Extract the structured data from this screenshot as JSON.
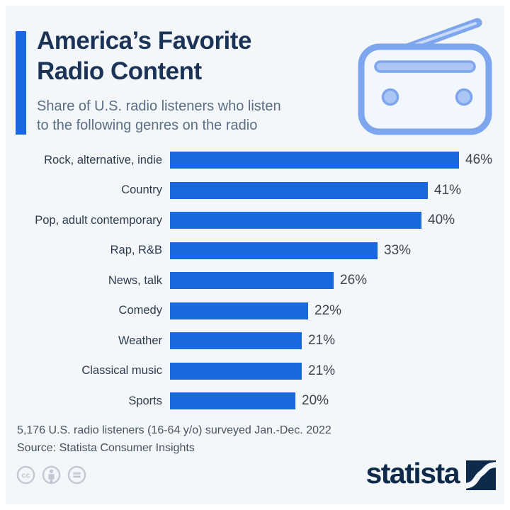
{
  "header": {
    "title_lines": [
      "America’s Favorite",
      "Radio Content"
    ],
    "subtitle_lines": [
      "Share of U.S. radio listeners who listen",
      "to the following genres on the radio"
    ]
  },
  "chart_data": {
    "type": "bar",
    "orientation": "horizontal",
    "title": "America’s Favorite Radio Content",
    "subtitle": "Share of U.S. radio listeners who listen to the following genres on the radio",
    "categories": [
      "Rock, alternative, indie",
      "Country",
      "Pop, adult contemporary",
      "Rap, R&B",
      "News, talk",
      "Comedy",
      "Weather",
      "Classical music",
      "Sports"
    ],
    "values": [
      46,
      41,
      40,
      33,
      26,
      22,
      21,
      21,
      20
    ],
    "unit": "%",
    "value_labels": [
      "46%",
      "41%",
      "40%",
      "33%",
      "26%",
      "22%",
      "21%",
      "21%",
      "20%"
    ],
    "xlim": [
      0,
      46
    ],
    "grid": false,
    "legend": false,
    "bar_color": "#1a68de"
  },
  "footer": {
    "note": "5,176 U.S. radio listeners (16-64 y/o) surveyed Jan.-Dec. 2022",
    "source": "Source: Statista Consumer Insights"
  },
  "branding": {
    "wordmark": "statista",
    "cc_label": "cc",
    "license_icons": [
      "cc-icon",
      "attribution-icon",
      "no-derivatives-icon"
    ]
  },
  "colors": {
    "background": "#f3f7fa",
    "frame": "#ffffff",
    "bar_blue": "#1a68de",
    "title_navy": "#1c3358",
    "subtitle_gray_blue": "#5b6e85",
    "category_label": "#2e3c4e",
    "value_label": "#3e4450",
    "footer_gray": "#47525f",
    "logo_navy": "#0e2a4a",
    "license_gray": "#c3c8d2",
    "radio_icon_stroke": "#7ea6ef",
    "radio_icon_fill": "#abc6f5"
  }
}
